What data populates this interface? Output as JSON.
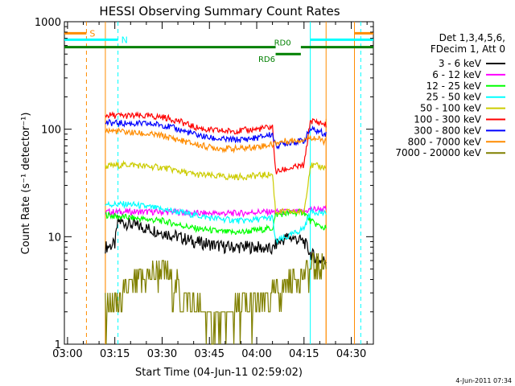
{
  "chart_data": {
    "type": "line",
    "title": "HESSI Observing Summary Count Rates",
    "xlabel": "Start Time (04-Jun-11 02:59:02)",
    "ylabel": "Count Rate (s⁻¹ detector⁻¹)",
    "timestamp": "4-Jun-2011 07:34",
    "x_range": [
      "02:59",
      "04:37"
    ],
    "y_range": [
      1,
      1000
    ],
    "y_scale": "log",
    "grid": false,
    "x_ticks": [
      "03:00",
      "03:15",
      "03:30",
      "03:45",
      "04:00",
      "04:15",
      "04:30"
    ],
    "y_ticks": [
      "1",
      "10",
      "100",
      "1000"
    ],
    "legend": {
      "position": "right",
      "header": [
        "Det 1,3,4,5,6,",
        "FDecim 1, Att 0"
      ]
    },
    "colors": {
      "saa": "#ff8c00",
      "night": "#00ffff",
      "rd": "#008000",
      "axes": "#000000"
    },
    "markers": {
      "saa_label": "S",
      "night_label": "N",
      "rd_label_upper": "RD0",
      "rd_label_lower": "RD6",
      "data_start": "03:12",
      "data_end": "04:22",
      "saa_lines": [
        "03:06",
        "03:12",
        "04:22",
        "04:31"
      ],
      "night_lines": [
        "03:16",
        "04:17",
        "04:33"
      ]
    },
    "series": [
      {
        "name": "3 - 6 keV",
        "color": "#000000",
        "x": [
          "03:12",
          "03:15",
          "03:16",
          "03:20",
          "03:25",
          "03:30",
          "03:35",
          "03:40",
          "03:45",
          "03:50",
          "03:55",
          "04:00",
          "04:05",
          "04:06",
          "04:10",
          "04:15",
          "04:17",
          "04:20",
          "04:22"
        ],
        "y": [
          8,
          8.5,
          14,
          13,
          12,
          11,
          10,
          9,
          8.5,
          8,
          8,
          8,
          7.5,
          8.5,
          10,
          9,
          7,
          6,
          6
        ]
      },
      {
        "name": "6 - 12 keV",
        "color": "#ff00ff",
        "x": [
          "03:12",
          "03:15",
          "03:20",
          "03:25",
          "03:30",
          "03:35",
          "03:40",
          "03:45",
          "03:50",
          "03:55",
          "04:00",
          "04:05",
          "04:06",
          "04:10",
          "04:15",
          "04:17",
          "04:20",
          "04:22"
        ],
        "y": [
          17,
          17,
          17,
          17,
          17,
          17,
          16.5,
          16.5,
          16.5,
          16.5,
          17,
          17,
          17,
          17,
          17,
          18,
          18,
          18
        ]
      },
      {
        "name": "12 - 25 keV",
        "color": "#00ff00",
        "x": [
          "03:12",
          "03:15",
          "03:20",
          "03:25",
          "03:30",
          "03:35",
          "03:40",
          "03:45",
          "03:50",
          "03:55",
          "04:00",
          "04:05",
          "04:06",
          "04:10",
          "04:15",
          "04:17",
          "04:20",
          "04:22"
        ],
        "y": [
          16,
          15.5,
          15,
          14.5,
          14,
          13,
          12,
          11.5,
          11,
          11,
          11.5,
          12,
          16,
          16.5,
          17,
          14,
          12.5,
          12
        ]
      },
      {
        "name": "25 - 50 keV",
        "color": "#00ffff",
        "x": [
          "03:12",
          "03:15",
          "03:20",
          "03:25",
          "03:30",
          "03:35",
          "03:40",
          "03:45",
          "03:50",
          "03:55",
          "04:00",
          "04:05",
          "04:06",
          "04:10",
          "04:15",
          "04:17",
          "04:20",
          "04:22"
        ],
        "y": [
          20,
          20,
          20,
          19,
          18,
          17,
          16,
          15,
          14.5,
          14,
          14.5,
          15,
          9,
          10,
          12,
          17,
          17,
          16
        ]
      },
      {
        "name": "50 - 100 keV",
        "color": "#cccc00",
        "x": [
          "03:12",
          "03:15",
          "03:20",
          "03:25",
          "03:30",
          "03:35",
          "03:40",
          "03:45",
          "03:50",
          "03:55",
          "04:00",
          "04:05",
          "04:06",
          "04:10",
          "04:15",
          "04:17",
          "04:20",
          "04:22"
        ],
        "y": [
          45,
          46,
          47,
          45,
          44,
          41,
          38,
          37,
          36,
          36,
          37,
          38,
          17,
          17,
          17,
          46,
          45,
          44
        ]
      },
      {
        "name": "100 - 300 keV",
        "color": "#ff0000",
        "x": [
          "03:12",
          "03:15",
          "03:20",
          "03:25",
          "03:30",
          "03:35",
          "03:40",
          "03:45",
          "03:50",
          "03:55",
          "04:00",
          "04:05",
          "04:06",
          "04:10",
          "04:15",
          "04:17",
          "04:20",
          "04:22"
        ],
        "y": [
          135,
          134,
          133,
          132,
          130,
          120,
          105,
          98,
          96,
          97,
          100,
          105,
          40,
          43,
          46,
          120,
          115,
          110
        ]
      },
      {
        "name": "300 - 800 keV",
        "color": "#0000ff",
        "x": [
          "03:12",
          "03:15",
          "03:20",
          "03:25",
          "03:30",
          "03:35",
          "03:40",
          "03:45",
          "03:50",
          "03:55",
          "04:00",
          "04:05",
          "04:06",
          "04:10",
          "04:15",
          "04:17",
          "04:20",
          "04:22"
        ],
        "y": [
          115,
          114,
          113,
          112,
          110,
          100,
          90,
          83,
          80,
          80,
          83,
          90,
          70,
          75,
          78,
          100,
          95,
          90
        ]
      },
      {
        "name": "800 - 7000 keV",
        "color": "#ff8c00",
        "x": [
          "03:12",
          "03:15",
          "03:20",
          "03:25",
          "03:30",
          "03:35",
          "03:40",
          "03:45",
          "03:50",
          "03:55",
          "04:00",
          "04:05",
          "04:06",
          "04:10",
          "04:15",
          "04:17",
          "04:20",
          "04:22"
        ],
        "y": [
          98,
          96,
          93,
          90,
          87,
          80,
          73,
          68,
          66,
          66,
          69,
          72,
          75,
          78,
          80,
          85,
          80,
          76
        ]
      },
      {
        "name": "7000 - 20000 keV",
        "color": "#808000",
        "x": [
          "03:12",
          "03:15",
          "03:20",
          "03:25",
          "03:30",
          "03:35",
          "03:40",
          "03:45",
          "03:50",
          "03:55",
          "04:00",
          "04:05",
          "04:10",
          "04:15",
          "04:17",
          "04:20",
          "04:22"
        ],
        "y": [
          2,
          2,
          3,
          4,
          4.5,
          3,
          2,
          1.5,
          1.5,
          2,
          2,
          2.5,
          3.5,
          4,
          4.5,
          5,
          5
        ]
      }
    ]
  }
}
